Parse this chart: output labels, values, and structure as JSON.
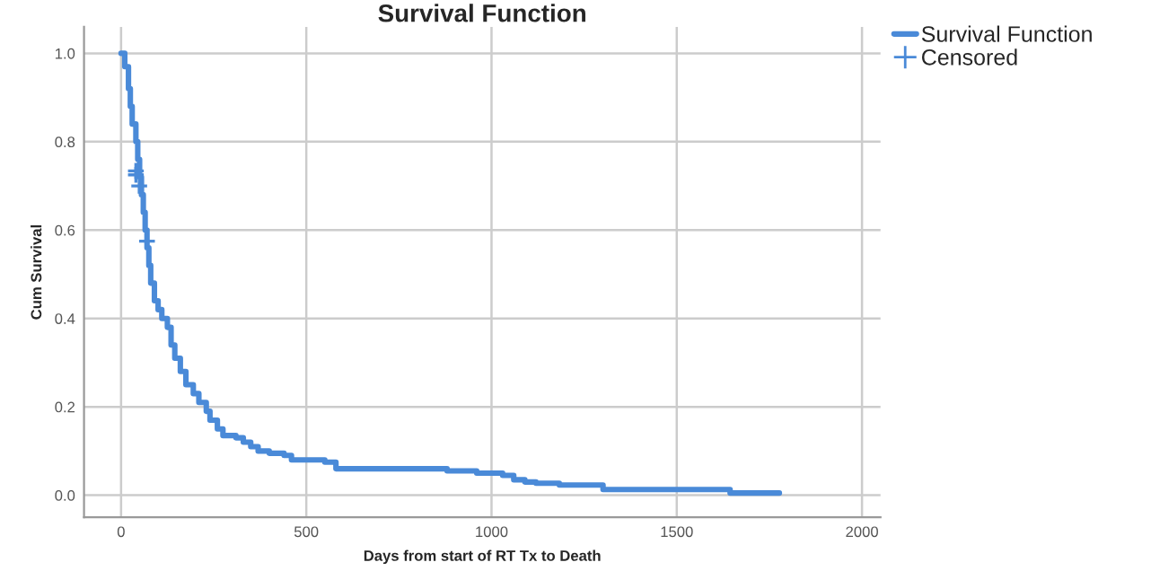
{
  "chart_data": {
    "type": "step",
    "title": "Survival Function",
    "xlabel": "Days from start of RT Tx to Death",
    "ylabel": "Cum Survival",
    "xlim": [
      -100,
      2050
    ],
    "ylim": [
      -0.05,
      1.06
    ],
    "xticks": [
      0,
      500,
      1000,
      1500,
      2000
    ],
    "yticks": [
      {
        "value": 0,
        "label": "0.0"
      },
      0.2,
      0.4,
      0.6,
      0.8,
      {
        "value": 1,
        "label": "1.0"
      }
    ],
    "grid": true,
    "legend": "top right",
    "series": [
      {
        "name": "Survival Function",
        "color": "#4a8ad8",
        "x": [
          0,
          10,
          20,
          25,
          30,
          40,
          45,
          50,
          55,
          60,
          65,
          70,
          75,
          80,
          90,
          100,
          110,
          125,
          135,
          145,
          160,
          175,
          195,
          210,
          230,
          240,
          260,
          275,
          310,
          330,
          350,
          370,
          400,
          440,
          460,
          550,
          580,
          880,
          960,
          1030,
          1060,
          1090,
          1120,
          1183,
          1301,
          1644,
          1777
        ],
        "values": [
          1.0,
          0.97,
          0.92,
          0.88,
          0.84,
          0.8,
          0.76,
          0.72,
          0.68,
          0.64,
          0.6,
          0.56,
          0.52,
          0.48,
          0.44,
          0.42,
          0.4,
          0.38,
          0.34,
          0.31,
          0.28,
          0.25,
          0.23,
          0.21,
          0.19,
          0.17,
          0.15,
          0.135,
          0.13,
          0.12,
          0.11,
          0.1,
          0.095,
          0.09,
          0.08,
          0.075,
          0.06,
          0.055,
          0.05,
          0.045,
          0.035,
          0.03,
          0.027,
          0.023,
          0.013,
          0.005,
          0.005
        ]
      },
      {
        "name": "Censored",
        "type": "scatter",
        "marker": "cross",
        "color": "#4a8ad8",
        "x": [
          40,
          40,
          49,
          70
        ],
        "values": [
          0.734,
          0.725,
          0.7,
          0.575
        ]
      }
    ]
  }
}
